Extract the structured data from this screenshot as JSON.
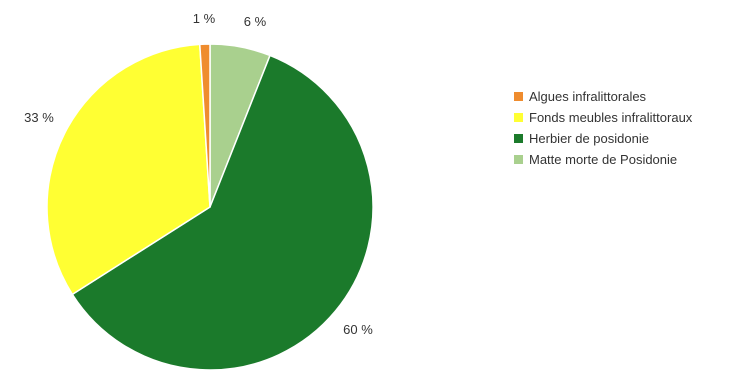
{
  "chart_data": {
    "type": "pie",
    "categories": [
      "Algues infralittorales",
      "Fonds meubles infralittoraux",
      "Herbier de posidonie",
      "Matte morte de Posidonie"
    ],
    "values": [
      1,
      33,
      60,
      6
    ],
    "data_labels": [
      "1 %",
      "33 %",
      "60 %",
      "6 %"
    ],
    "colors": [
      "#ef8c2e",
      "#ffff33",
      "#1b7a2b",
      "#a9d08e"
    ],
    "legend_placement": "right"
  }
}
